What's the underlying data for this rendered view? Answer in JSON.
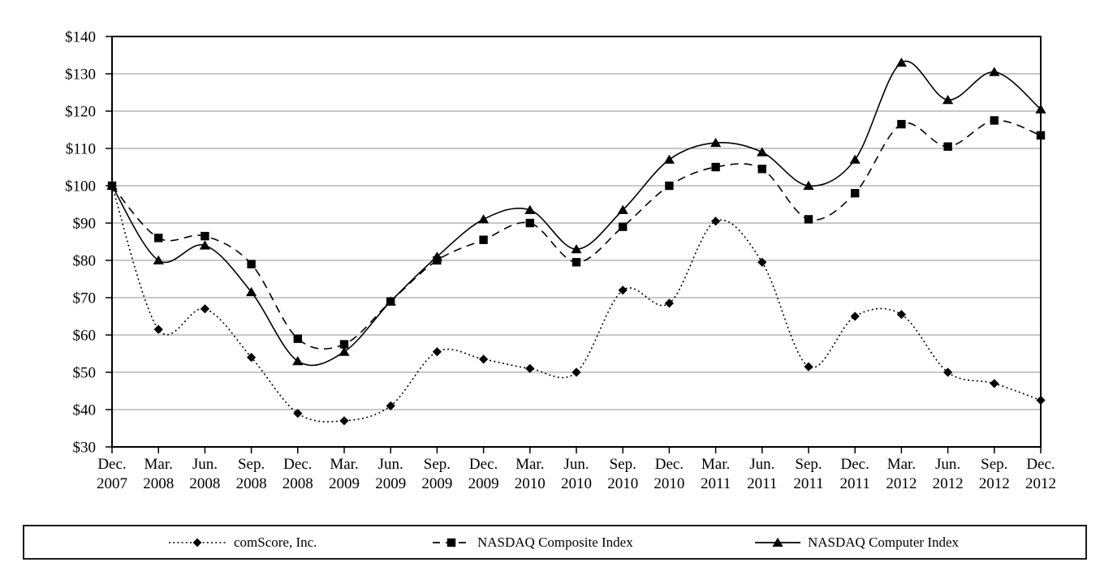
{
  "chart_data": {
    "type": "line",
    "title": "",
    "xlabel": "",
    "ylabel": "",
    "grid": "horizontal",
    "smoothed": true,
    "legend_position": "bottom-box",
    "y_axis": {
      "min": 30,
      "max": 140,
      "step": 10,
      "prefix": "$",
      "tick_labels": [
        "$140",
        "$130",
        "$120",
        "$110",
        "$100",
        "$90",
        "$80",
        "$70",
        "$60",
        "$50",
        "$40",
        "$30"
      ]
    },
    "x_categories": [
      {
        "line1": "Dec.",
        "line2": "2007"
      },
      {
        "line1": "Mar.",
        "line2": "2008"
      },
      {
        "line1": "Jun.",
        "line2": "2008"
      },
      {
        "line1": "Sep.",
        "line2": "2008"
      },
      {
        "line1": "Dec.",
        "line2": "2008"
      },
      {
        "line1": "Mar.",
        "line2": "2009"
      },
      {
        "line1": "Jun.",
        "line2": "2009"
      },
      {
        "line1": "Sep.",
        "line2": "2009"
      },
      {
        "line1": "Dec.",
        "line2": "2009"
      },
      {
        "line1": "Mar.",
        "line2": "2010"
      },
      {
        "line1": "Jun.",
        "line2": "2010"
      },
      {
        "line1": "Sep.",
        "line2": "2010"
      },
      {
        "line1": "Dec.",
        "line2": "2010"
      },
      {
        "line1": "Mar.",
        "line2": "2011"
      },
      {
        "line1": "Jun.",
        "line2": "2011"
      },
      {
        "line1": "Sep.",
        "line2": "2011"
      },
      {
        "line1": "Dec.",
        "line2": "2011"
      },
      {
        "line1": "Mar.",
        "line2": "2012"
      },
      {
        "line1": "Jun.",
        "line2": "2012"
      },
      {
        "line1": "Sep.",
        "line2": "2012"
      },
      {
        "line1": "Dec.",
        "line2": "2012"
      }
    ],
    "series": [
      {
        "name": "comScore, Inc.",
        "marker": "diamond",
        "line_style": "dotted",
        "color": "#000000",
        "values": [
          100,
          61.5,
          67,
          54,
          39,
          37,
          41,
          55.5,
          53.5,
          51,
          50,
          72,
          68.5,
          90.5,
          79.5,
          51.5,
          65,
          65.5,
          50,
          47,
          42.5
        ]
      },
      {
        "name": "NASDAQ Composite Index",
        "marker": "square",
        "line_style": "dashed",
        "color": "#000000",
        "values": [
          100,
          86,
          86.5,
          79,
          59,
          57.5,
          69,
          80,
          85.5,
          90,
          79.5,
          89,
          100,
          105,
          104.5,
          91,
          98,
          116.5,
          110.5,
          117.5,
          113.5
        ]
      },
      {
        "name": "NASDAQ Computer Index",
        "marker": "triangle",
        "line_style": "solid",
        "color": "#000000",
        "values": [
          100,
          80,
          84,
          71.5,
          53,
          55.5,
          69,
          81,
          91,
          93.5,
          83,
          93.5,
          107,
          111.5,
          109,
          100,
          107,
          133,
          123,
          130.5,
          120.5
        ]
      }
    ]
  },
  "colors": {
    "series": "#000000",
    "grid": "#919191",
    "axis": "#000000",
    "background": "#ffffff",
    "legend_border": "#1c1c1c"
  }
}
